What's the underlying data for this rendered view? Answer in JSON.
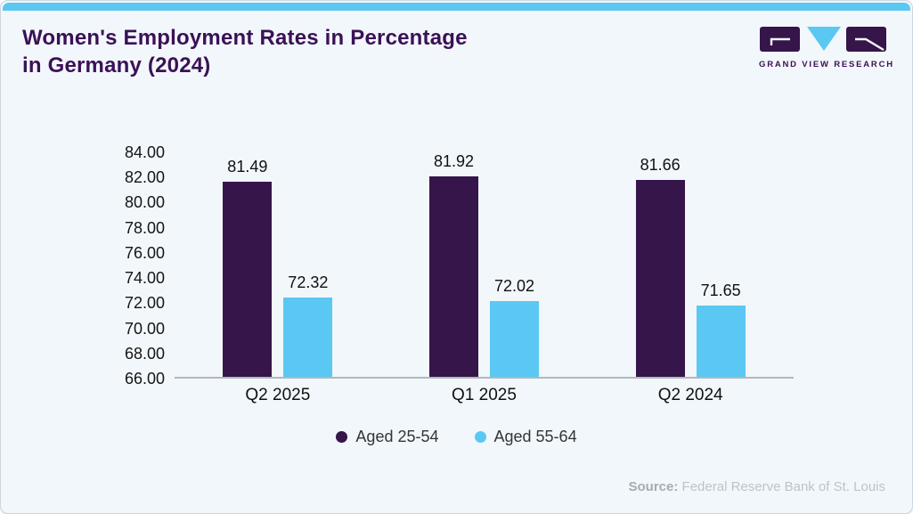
{
  "page": {
    "title_line1": "Women's Employment Rates in Percentage",
    "title_line2": "in Germany (2024)",
    "source_label": "Source:",
    "source_text": " Federal Reserve Bank of St. Louis",
    "logo_text": "GRAND VIEW RESEARCH"
  },
  "colors": {
    "accent_purple": "#3b1156",
    "bar_purple": "#36154a",
    "bar_blue": "#5bc8f3",
    "top_strip": "#5bc8f1",
    "background": "#f2f7fb",
    "axis": "#b3b8bd"
  },
  "chart_data": {
    "type": "bar",
    "title": "Women's Employment Rates in Percentage in Germany (2024)",
    "categories": [
      "Q2 2025",
      "Q1 2025",
      "Q2 2024"
    ],
    "series": [
      {
        "name": "Aged 25-54",
        "color": "#36154a",
        "values": [
          81.49,
          81.92,
          81.66
        ]
      },
      {
        "name": "Aged 55-64",
        "color": "#5bc8f3",
        "values": [
          72.32,
          72.02,
          71.65
        ]
      }
    ],
    "value_labels": [
      "81.49",
      "81.92",
      "81.66",
      "72.32",
      "72.02",
      "71.65"
    ],
    "ylim": [
      66,
      84
    ],
    "ytick_step": 2,
    "yticks": [
      "84.00",
      "82.00",
      "80.00",
      "78.00",
      "76.00",
      "74.00",
      "72.00",
      "70.00",
      "68.00",
      "66.00"
    ],
    "grid": false,
    "legend_position": "bottom",
    "xlabel": "",
    "ylabel": ""
  }
}
